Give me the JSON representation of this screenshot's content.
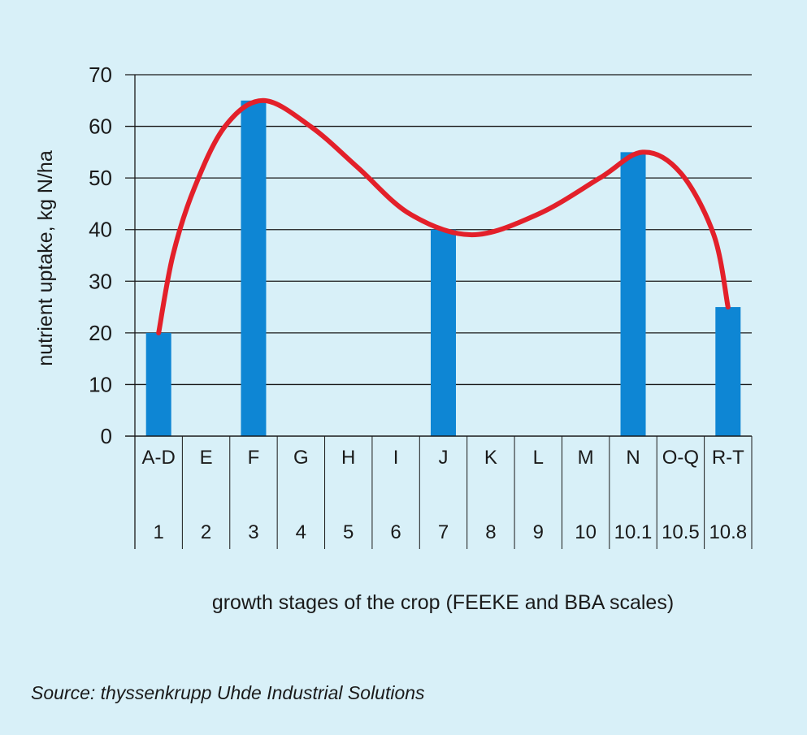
{
  "chart_data": {
    "type": "bar",
    "title": "",
    "xlabel": "growth stages of the crop (FEEKE and BBA scales)",
    "ylabel": "nutrient uptake, kg N/ha",
    "ylim": [
      0,
      70
    ],
    "yticks": [
      0,
      10,
      20,
      30,
      40,
      50,
      60,
      70
    ],
    "grid": true,
    "categories": [
      "A-D",
      "E",
      "F",
      "G",
      "H",
      "I",
      "J",
      "K",
      "L",
      "M",
      "N",
      "O-Q",
      "R-T"
    ],
    "secondary_categories": [
      "1",
      "2",
      "3",
      "4",
      "5",
      "6",
      "7",
      "8",
      "9",
      "10",
      "10.1",
      "10.5",
      "10.8"
    ],
    "series": [
      {
        "type": "bar",
        "color": "#0e86d4",
        "values": [
          20,
          null,
          65,
          null,
          null,
          null,
          40,
          null,
          null,
          null,
          55,
          null,
          25
        ]
      },
      {
        "type": "line",
        "smooth": true,
        "color": "#e3202a",
        "points": [
          {
            "x": 0,
            "y": 20
          },
          {
            "x": 0.3,
            "y": 35
          },
          {
            "x": 0.75,
            "y": 48
          },
          {
            "x": 1.4,
            "y": 60
          },
          {
            "x": 2.2,
            "y": 65
          },
          {
            "x": 3.2,
            "y": 60
          },
          {
            "x": 4.2,
            "y": 52
          },
          {
            "x": 5.3,
            "y": 43
          },
          {
            "x": 6.6,
            "y": 39
          },
          {
            "x": 8.0,
            "y": 43
          },
          {
            "x": 9.3,
            "y": 50
          },
          {
            "x": 10.2,
            "y": 55
          },
          {
            "x": 11.0,
            "y": 51
          },
          {
            "x": 11.7,
            "y": 39
          },
          {
            "x": 12.0,
            "y": 25
          }
        ]
      }
    ]
  },
  "source_text": "Source: thyssenkrupp Uhde Industrial Solutions"
}
